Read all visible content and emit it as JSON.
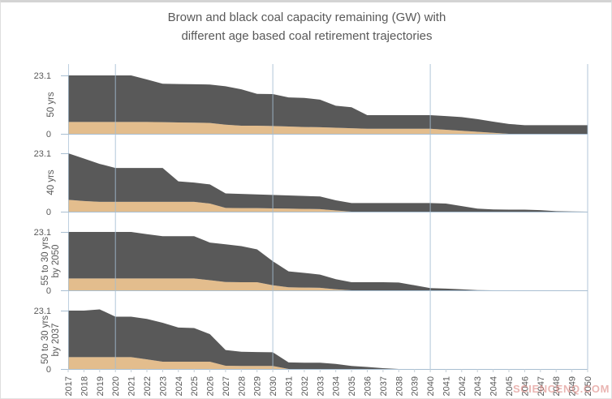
{
  "title": {
    "line1": "Brown and black coal capacity remaining (GW) with",
    "line2": "different age based coal retirement trajectories"
  },
  "watermark": "SCIENCENQ.COM",
  "chart_data": {
    "type": "area",
    "stacked": true,
    "unit": "GW",
    "title": "Brown and black coal capacity remaining (GW) with different age based coal retirement trajectories",
    "x": [
      2017,
      2018,
      2019,
      2020,
      2021,
      2022,
      2023,
      2024,
      2025,
      2026,
      2027,
      2028,
      2029,
      2030,
      2031,
      2032,
      2033,
      2034,
      2035,
      2036,
      2037,
      2038,
      2039,
      2040,
      2041,
      2042,
      2043,
      2044,
      2045,
      2046,
      2047,
      2048,
      2049,
      2050
    ],
    "x_gridline_years": [
      2020,
      2030,
      2040,
      2050
    ],
    "ylim": [
      0,
      23.1
    ],
    "ytick_labels": [
      "23.1",
      "0"
    ],
    "grid_on": true,
    "legend": "none",
    "colors": {
      "brown_coal": "#e3bd8d",
      "black_coal": "#595959",
      "gridline": "#a3bdd3",
      "axis_line": "#a9bfd2",
      "minor_tick": "#c3cdd6",
      "text": "#595959"
    },
    "panels": [
      {
        "label_lines": [
          "50 yrs"
        ],
        "series": [
          {
            "name": "brown coal",
            "values": [
              4.7,
              4.7,
              4.7,
              4.7,
              4.7,
              4.7,
              4.6,
              4.5,
              4.4,
              4.3,
              3.6,
              3.2,
              3.2,
              3.1,
              2.9,
              2.7,
              2.6,
              2.4,
              2.2,
              2.0,
              2.0,
              2.0,
              2.0,
              2.0,
              1.6,
              1.2,
              0.8,
              0.4,
              0,
              0,
              0,
              0,
              0,
              0
            ]
          },
          {
            "name": "black coal",
            "values": [
              18.4,
              18.4,
              18.4,
              18.4,
              18.4,
              16.8,
              15.2,
              15.2,
              15.2,
              15.2,
              15.2,
              14.4,
              12.6,
              12.6,
              11.5,
              11.5,
              10.9,
              8.7,
              8.3,
              5.4,
              5.4,
              5.4,
              5.4,
              5.4,
              5.4,
              5.4,
              5.0,
              4.4,
              3.9,
              3.4,
              3.4,
              3.4,
              3.4,
              3.4
            ]
          }
        ]
      },
      {
        "label_lines": [
          "40 yrs"
        ],
        "series": [
          {
            "name": "brown coal",
            "values": [
              4.7,
              4.2,
              3.9,
              3.9,
              3.9,
              3.9,
              3.9,
              3.9,
              3.9,
              3.2,
              1.5,
              1.4,
              1.4,
              1.3,
              1.2,
              1.1,
              1.0,
              0.5,
              0,
              0,
              0,
              0,
              0,
              0,
              0,
              0,
              0,
              0,
              0,
              0,
              0,
              0,
              0,
              0
            ]
          },
          {
            "name": "black coal",
            "values": [
              18.4,
              16.8,
              15.0,
              13.4,
              13.4,
              13.4,
              13.4,
              8.1,
              7.6,
              7.6,
              5.7,
              5.6,
              5.4,
              5.3,
              5.2,
              5.1,
              5.0,
              4.0,
              3.4,
              3.4,
              3.4,
              3.4,
              3.4,
              3.4,
              3.2,
              2.2,
              1.2,
              0.9,
              0.8,
              0.8,
              0.6,
              0.2,
              0.1,
              0
            ]
          }
        ]
      },
      {
        "label_lines": [
          "55 to 30 yrs",
          "by 2050"
        ],
        "series": [
          {
            "name": "brown coal",
            "values": [
              4.7,
              4.7,
              4.7,
              4.7,
              4.7,
              4.7,
              4.7,
              4.7,
              4.7,
              4.0,
              3.3,
              3.2,
              3.2,
              2.0,
              1.2,
              1.1,
              1.0,
              0.4,
              0,
              0,
              0,
              0,
              0,
              0,
              0,
              0,
              0,
              0,
              0,
              0,
              0,
              0,
              0,
              0
            ]
          },
          {
            "name": "black coal",
            "values": [
              18.4,
              18.4,
              18.4,
              18.4,
              18.4,
              17.5,
              16.7,
              16.7,
              16.7,
              14.9,
              14.9,
              14.3,
              13.0,
              9.5,
              6.3,
              5.8,
              5.2,
              4.0,
              3.2,
              3.2,
              3.2,
              3.1,
              2.0,
              0.9,
              0.7,
              0.4,
              0.1,
              0,
              0,
              0,
              0,
              0,
              0,
              0
            ]
          }
        ]
      },
      {
        "label_lines": [
          "50 to 30 yrs",
          "by 2037"
        ],
        "series": [
          {
            "name": "brown coal",
            "values": [
              4.7,
              4.7,
              4.7,
              4.7,
              4.7,
              3.8,
              2.9,
              2.9,
              2.9,
              2.9,
              1.3,
              1.2,
              1.2,
              1.2,
              0,
              0,
              0,
              0,
              0,
              0,
              0,
              0,
              0,
              0,
              0,
              0,
              0,
              0,
              0,
              0,
              0,
              0,
              0,
              0
            ]
          },
          {
            "name": "black coal",
            "values": [
              18.4,
              18.4,
              18.9,
              16.0,
              16.0,
              16.0,
              15.4,
              13.5,
              13.3,
              10.9,
              6.2,
              5.6,
              5.5,
              5.4,
              2.6,
              2.5,
              2.5,
              2.0,
              1.2,
              0.8,
              0.3,
              0,
              0,
              0,
              0,
              0,
              0,
              0,
              0,
              0,
              0,
              0,
              0,
              0
            ]
          }
        ]
      }
    ]
  }
}
